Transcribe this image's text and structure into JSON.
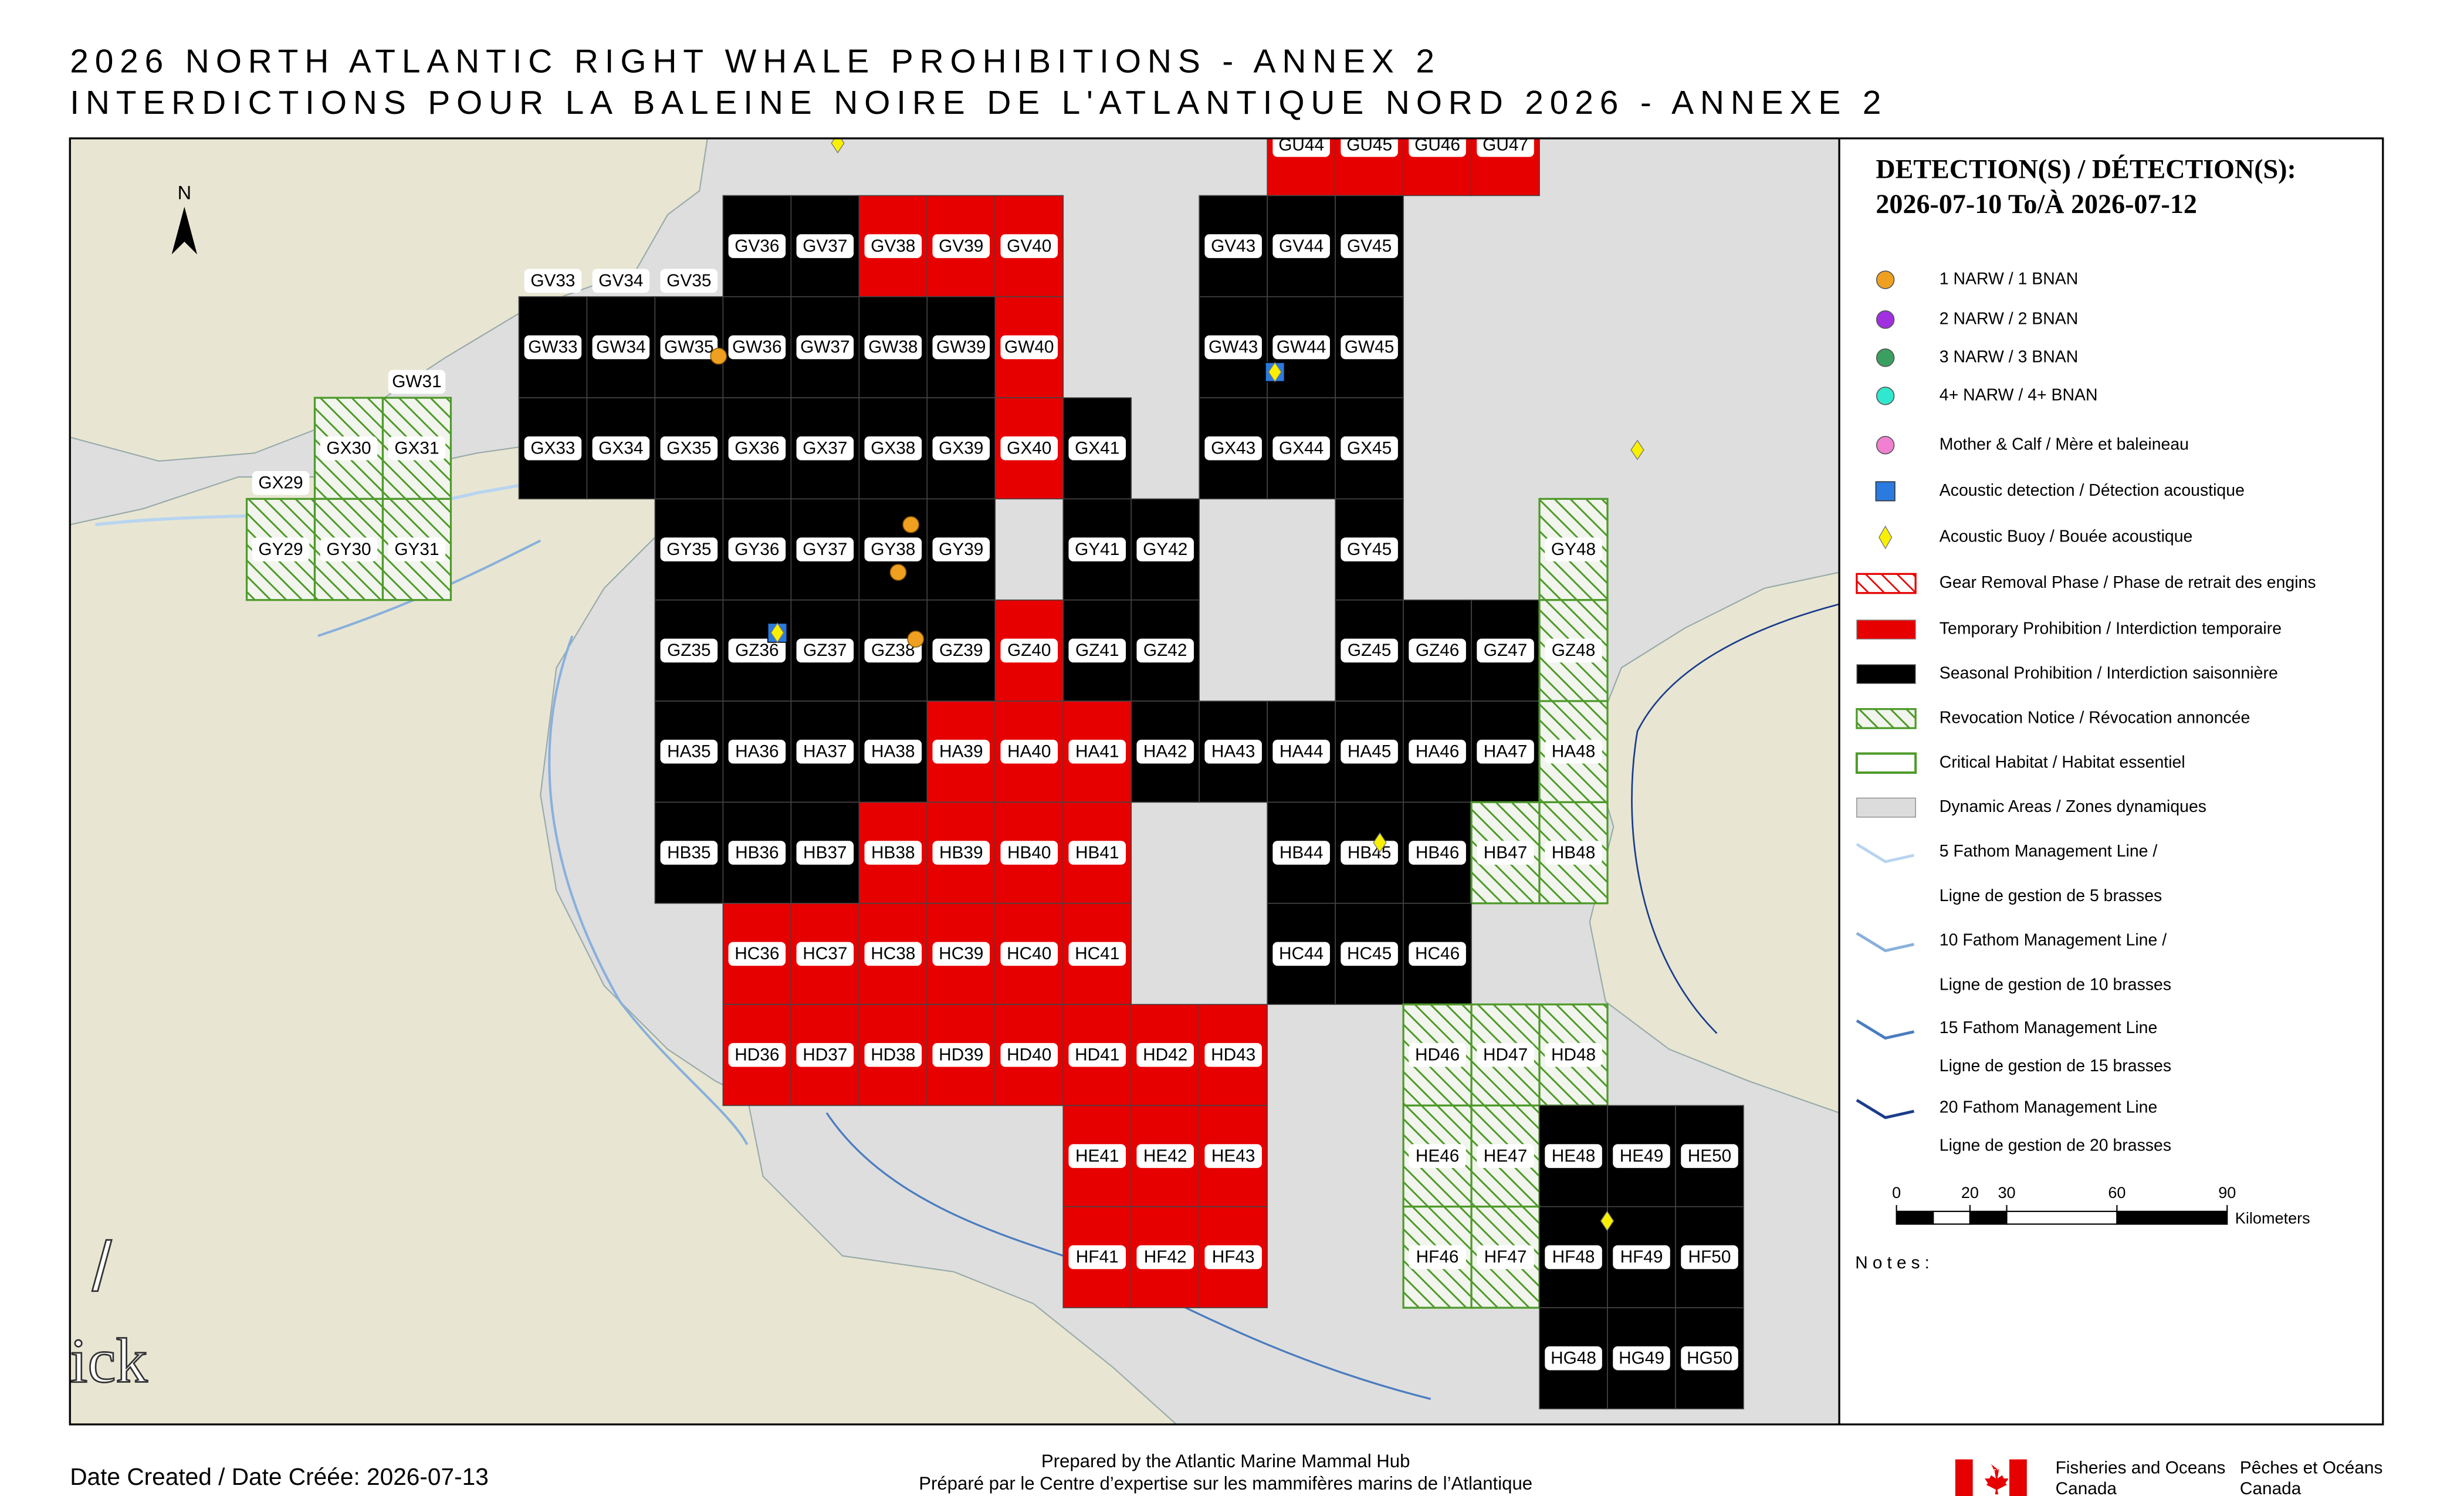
{
  "header": {
    "title": "2026 NORTH ATLANTIC RIGHT WHALE PROHIBITIONS - ANNEX 2",
    "subtitle": "INTERDICTIONS POUR LA BALEINE NOIRE DE L'ATLANTIQUE NORD 2026 - ANNEXE 2"
  },
  "map": {
    "north": "N",
    "place_labels": [
      "/",
      "ick"
    ],
    "cells": [
      {
        "label": "GU44",
        "color": "#e60000"
      },
      {
        "label": "GU45",
        "color": "#e60000"
      },
      {
        "label": "GU46",
        "color": "#e60000"
      },
      {
        "label": "GU47",
        "color": "#e60000"
      },
      {
        "label": "GV33"
      },
      {
        "label": "GV34"
      },
      {
        "label": "GV35"
      },
      {
        "label": "GV36",
        "color": "#000000"
      },
      {
        "label": "GV37",
        "color": "#000000"
      },
      {
        "label": "GV38",
        "color": "#e60000"
      },
      {
        "label": "GV39",
        "color": "#e60000"
      },
      {
        "label": "GV40",
        "color": "#e60000"
      },
      {
        "label": "GV43",
        "color": "#000000"
      },
      {
        "label": "GV44",
        "color": "#000000"
      },
      {
        "label": "GV45",
        "color": "#000000"
      },
      {
        "label": "GW31"
      },
      {
        "label": "GW33",
        "color": "#000000"
      },
      {
        "label": "GW34",
        "color": "#000000"
      },
      {
        "label": "GW35",
        "color": "#000000"
      },
      {
        "label": "GW36",
        "color": "#000000"
      },
      {
        "label": "GW37",
        "color": "#000000"
      },
      {
        "label": "GW38",
        "color": "#000000"
      },
      {
        "label": "GW39",
        "color": "#000000"
      },
      {
        "label": "GW40",
        "color": "#e60000"
      },
      {
        "label": "GW43",
        "color": "#000000"
      },
      {
        "label": "GW44",
        "color": "#000000"
      },
      {
        "label": "GW45",
        "color": "#000000"
      },
      {
        "label": "GX29"
      },
      {
        "label": "GX30",
        "color": "#4e9a2a",
        "hatch": true
      },
      {
        "label": "GX31",
        "color": "#4e9a2a",
        "hatch": true
      },
      {
        "label": "GX33",
        "color": "#000000"
      },
      {
        "label": "GX34",
        "color": "#000000"
      },
      {
        "label": "GX35",
        "color": "#000000"
      },
      {
        "label": "GX36",
        "color": "#000000"
      },
      {
        "label": "GX37",
        "color": "#000000"
      },
      {
        "label": "GX38",
        "color": "#000000"
      },
      {
        "label": "GX39",
        "color": "#000000"
      },
      {
        "label": "GX40",
        "color": "#e60000"
      },
      {
        "label": "GX41",
        "color": "#000000"
      },
      {
        "label": "GX43",
        "color": "#000000"
      },
      {
        "label": "GX44",
        "color": "#000000"
      },
      {
        "label": "GX45",
        "color": "#000000"
      },
      {
        "label": "GY29",
        "color": "#4e9a2a",
        "hatch": true
      },
      {
        "label": "GY30",
        "color": "#4e9a2a",
        "hatch": true
      },
      {
        "label": "GY31",
        "color": "#4e9a2a",
        "hatch": true
      },
      {
        "label": "GY35",
        "color": "#000000"
      },
      {
        "label": "GY36",
        "color": "#000000"
      },
      {
        "label": "GY37",
        "color": "#000000"
      },
      {
        "label": "GY38",
        "color": "#000000"
      },
      {
        "label": "GY39",
        "color": "#000000"
      },
      {
        "label": "GY41",
        "color": "#000000"
      },
      {
        "label": "GY42",
        "color": "#000000"
      },
      {
        "label": "GY45",
        "color": "#000000"
      },
      {
        "label": "GY48",
        "color": "#4e9a2a",
        "hatch": true
      },
      {
        "label": "GZ35",
        "color": "#000000"
      },
      {
        "label": "GZ36",
        "color": "#000000"
      },
      {
        "label": "GZ37",
        "color": "#000000"
      },
      {
        "label": "GZ38",
        "color": "#000000"
      },
      {
        "label": "GZ39",
        "color": "#000000"
      },
      {
        "label": "GZ40",
        "color": "#e60000"
      },
      {
        "label": "GZ41",
        "color": "#000000"
      },
      {
        "label": "GZ42",
        "color": "#000000"
      },
      {
        "label": "GZ45",
        "color": "#000000"
      },
      {
        "label": "GZ46",
        "color": "#000000"
      },
      {
        "label": "GZ47",
        "color": "#000000"
      },
      {
        "label": "GZ48",
        "color": "#4e9a2a",
        "hatch": true
      },
      {
        "label": "HA35",
        "color": "#000000"
      },
      {
        "label": "HA36",
        "color": "#000000"
      },
      {
        "label": "HA37",
        "color": "#000000"
      },
      {
        "label": "HA38",
        "color": "#000000"
      },
      {
        "label": "HA39",
        "color": "#e60000"
      },
      {
        "label": "HA40",
        "color": "#e60000"
      },
      {
        "label": "HA41",
        "color": "#e60000"
      },
      {
        "label": "HA42",
        "color": "#000000"
      },
      {
        "label": "HA43",
        "color": "#000000"
      },
      {
        "label": "HA44",
        "color": "#000000"
      },
      {
        "label": "HA45",
        "color": "#000000"
      },
      {
        "label": "HA46",
        "color": "#000000"
      },
      {
        "label": "HA47",
        "color": "#000000"
      },
      {
        "label": "HA48",
        "color": "#4e9a2a",
        "hatch": true
      },
      {
        "label": "HB35",
        "color": "#000000"
      },
      {
        "label": "HB36",
        "color": "#000000"
      },
      {
        "label": "HB37",
        "color": "#000000"
      },
      {
        "label": "HB38",
        "color": "#e60000"
      },
      {
        "label": "HB39",
        "color": "#e60000"
      },
      {
        "label": "HB40",
        "color": "#e60000"
      },
      {
        "label": "HB41",
        "color": "#e60000"
      },
      {
        "label": "HB44",
        "color": "#000000"
      },
      {
        "label": "HB45",
        "color": "#000000"
      },
      {
        "label": "HB46",
        "color": "#000000"
      },
      {
        "label": "HB47",
        "color": "#4e9a2a",
        "hatch": true
      },
      {
        "label": "HB48",
        "color": "#4e9a2a",
        "hatch": true
      },
      {
        "label": "HC36",
        "color": "#e60000"
      },
      {
        "label": "HC37",
        "color": "#e60000"
      },
      {
        "label": "HC38",
        "color": "#e60000"
      },
      {
        "label": "HC39",
        "color": "#e60000"
      },
      {
        "label": "HC40",
        "color": "#e60000"
      },
      {
        "label": "HC41",
        "color": "#e60000"
      },
      {
        "label": "HC44",
        "color": "#000000"
      },
      {
        "label": "HC45",
        "color": "#000000"
      },
      {
        "label": "HC46",
        "color": "#000000"
      },
      {
        "label": "HD36",
        "color": "#e60000"
      },
      {
        "label": "HD37",
        "color": "#e60000"
      },
      {
        "label": "HD38",
        "color": "#e60000"
      },
      {
        "label": "HD39",
        "color": "#e60000"
      },
      {
        "label": "HD40",
        "color": "#e60000"
      },
      {
        "label": "HD41",
        "color": "#e60000"
      },
      {
        "label": "HD42",
        "color": "#e60000"
      },
      {
        "label": "HD43",
        "color": "#e60000"
      },
      {
        "label": "HD46",
        "color": "#4e9a2a",
        "hatch": true
      },
      {
        "label": "HD47",
        "color": "#4e9a2a",
        "hatch": true
      },
      {
        "label": "HD48",
        "color": "#4e9a2a",
        "hatch": true
      },
      {
        "label": "HE41",
        "color": "#e60000"
      },
      {
        "label": "HE42",
        "color": "#e60000"
      },
      {
        "label": "HE43",
        "color": "#e60000"
      },
      {
        "label": "HE46",
        "color": "#4e9a2a",
        "hatch": true
      },
      {
        "label": "HE47",
        "color": "#4e9a2a",
        "hatch": true
      },
      {
        "label": "HE48",
        "color": "#000000"
      },
      {
        "label": "HE49",
        "color": "#000000"
      },
      {
        "label": "HE50",
        "color": "#000000"
      },
      {
        "label": "HF41",
        "color": "#e60000"
      },
      {
        "label": "HF42",
        "color": "#e60000"
      },
      {
        "label": "HF43",
        "color": "#e60000"
      },
      {
        "label": "HF46",
        "color": "#4e9a2a",
        "hatch": true
      },
      {
        "label": "HF47",
        "color": "#4e9a2a",
        "hatch": true
      },
      {
        "label": "HF48",
        "color": "#000000"
      },
      {
        "label": "HF49",
        "color": "#000000"
      },
      {
        "label": "HF50",
        "color": "#000000"
      },
      {
        "label": "HG48",
        "color": "#000000"
      },
      {
        "label": "HG49",
        "color": "#000000"
      },
      {
        "label": "HG50",
        "color": "#000000"
      }
    ]
  },
  "legend": {
    "title": "DETECTION(S) / DÉTECTION(S):",
    "date_range": "2026-07-10 To/À 2026-07-12",
    "items": [
      {
        "label": "1 NARW / 1 BNAN",
        "symbol": "circle",
        "color": "#f0a020"
      },
      {
        "label": "2 NARW / 2 BNAN",
        "symbol": "circle",
        "color": "#a030e0"
      },
      {
        "label": "3 NARW / 3 BNAN",
        "symbol": "circle",
        "color": "#3aa060"
      },
      {
        "label": "4+ NARW / 4+ BNAN",
        "symbol": "circle",
        "color": "#30e8d0"
      },
      {
        "label": "Mother & Calf / Mère et baleineau",
        "symbol": "circle",
        "color": "#f080d0"
      },
      {
        "label": "Acoustic detection / Détection acoustique",
        "symbol": "square",
        "color": "#2a7ae0"
      },
      {
        "label": "Acoustic Buoy / Bouée acoustique",
        "symbol": "diamond",
        "color": "#f8f000"
      },
      {
        "label": "Gear Removal Phase / Phase de retrait des engins",
        "symbol": "hatch",
        "color": "#e60000"
      },
      {
        "label": "Temporary Prohibition / Interdiction temporaire",
        "symbol": "box",
        "color": "#e60000"
      },
      {
        "label": "Seasonal Prohibition / Interdiction saisonnière",
        "symbol": "box",
        "color": "#000000"
      },
      {
        "label": "Revocation Notice / Révocation annoncée",
        "symbol": "hatch",
        "color": "#4e9a2a"
      },
      {
        "label": "Critical Habitat / Habitat essentiel",
        "symbol": "outline",
        "color": "#4e9a2a"
      },
      {
        "label": "Dynamic Areas / Zones dynamiques",
        "symbol": "box",
        "color": "#dcdcdc"
      },
      {
        "label": "5 Fathom Management Line /",
        "label_2": "Ligne de gestion de 5 brasses",
        "symbol": "line",
        "color": "#b8d4f0"
      },
      {
        "label": "10 Fathom Management Line /",
        "label_2": "Ligne de gestion de 10 brasses",
        "symbol": "line",
        "color": "#88b0dc"
      },
      {
        "label": "15 Fathom Management Line",
        "label_2": "Ligne de gestion de 15 brasses",
        "symbol": "line",
        "color": "#4a7cc0"
      },
      {
        "label": "20 Fathom Management Line",
        "label_2": "Ligne de gestion de 20 brasses",
        "symbol": "line",
        "color": "#1a3c8c"
      }
    ],
    "scale": {
      "ticks": [
        0,
        20,
        30,
        60,
        90
      ],
      "unit": "Kilometers"
    },
    "notes": "Notes:"
  },
  "footer": {
    "date_created": "Date Created / Date Créée: 2026-07-13",
    "prepared_en": "Prepared by the Atlantic Marine Mammal Hub",
    "prepared_fr": "Préparé par le Centre d’expertise sur les mammifères marins de l’Atlantique",
    "dept_en": [
      "Fisheries and Oceans",
      "Canada"
    ],
    "dept_fr": [
      "Pêches et Océans",
      "Canada"
    ]
  }
}
